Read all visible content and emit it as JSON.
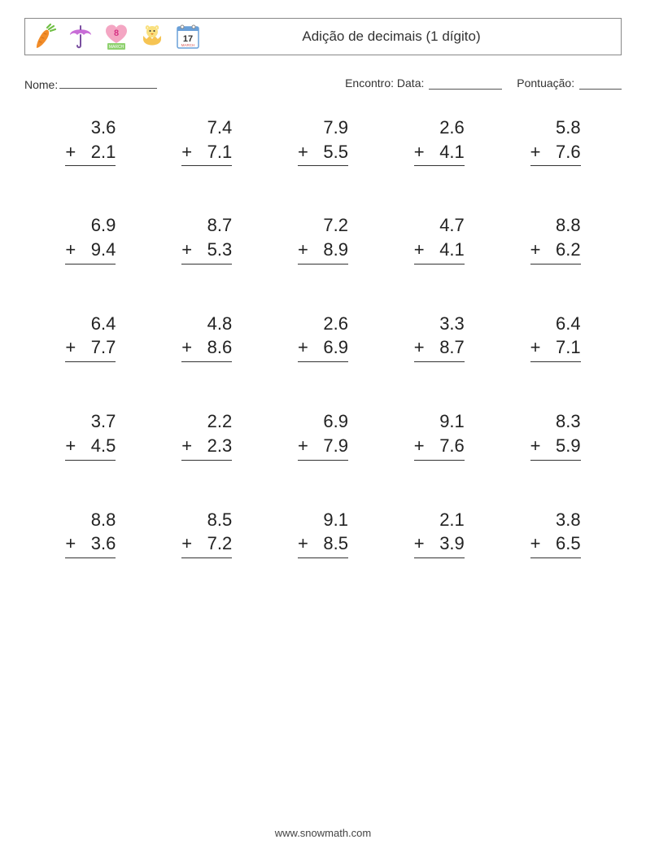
{
  "title": "Adição de decimais (1 dígito)",
  "labels": {
    "name": "Nome:",
    "encounter": "Encontro: Data:",
    "score": "Pontuação:"
  },
  "underline_widths": {
    "name": 120,
    "date": 90,
    "score": 52
  },
  "layout": {
    "rows": 5,
    "cols": 5,
    "problem_fontsize": 22,
    "title_fontsize": 17,
    "label_fontsize": 14,
    "text_color": "#333333",
    "number_color": "#222222",
    "border_color": "#888888",
    "underline_color": "#555555",
    "problem_rule_color": "#333333",
    "background": "#ffffff"
  },
  "icons": [
    {
      "name": "carrot-icon",
      "colors": {
        "body": "#f28c28",
        "leaf": "#6fbf44"
      }
    },
    {
      "name": "umbrella-icon",
      "colors": {
        "canopy": "#c86dd7",
        "handle": "#7a4fa0"
      }
    },
    {
      "name": "heart-calendar-icon",
      "colors": {
        "heart": "#f4a6c3",
        "badge_bg": "#8fd16f",
        "badge_text": "#ffffff",
        "num": "#d63384"
      },
      "text_num": "8",
      "text_label": "MARCH"
    },
    {
      "name": "chick-egg-icon",
      "colors": {
        "egg": "#f6c453",
        "chick": "#f9e07f",
        "beak": "#e67e22"
      }
    },
    {
      "name": "calendar-icon",
      "colors": {
        "frame": "#6aa0d8",
        "page": "#ffffff",
        "ring": "#888888",
        "num": "#333333",
        "label": "#d9534f"
      },
      "text_num": "17",
      "text_label": "MARCH"
    }
  ],
  "operation": "+",
  "problems": [
    [
      {
        "a": "3.6",
        "b": "2.1"
      },
      {
        "a": "7.4",
        "b": "7.1"
      },
      {
        "a": "7.9",
        "b": "5.5"
      },
      {
        "a": "2.6",
        "b": "4.1"
      },
      {
        "a": "5.8",
        "b": "7.6"
      }
    ],
    [
      {
        "a": "6.9",
        "b": "9.4"
      },
      {
        "a": "8.7",
        "b": "5.3"
      },
      {
        "a": "7.2",
        "b": "8.9"
      },
      {
        "a": "4.7",
        "b": "4.1"
      },
      {
        "a": "8.8",
        "b": "6.2"
      }
    ],
    [
      {
        "a": "6.4",
        "b": "7.7"
      },
      {
        "a": "4.8",
        "b": "8.6"
      },
      {
        "a": "2.6",
        "b": "6.9"
      },
      {
        "a": "3.3",
        "b": "8.7"
      },
      {
        "a": "6.4",
        "b": "7.1"
      }
    ],
    [
      {
        "a": "3.7",
        "b": "4.5"
      },
      {
        "a": "2.2",
        "b": "2.3"
      },
      {
        "a": "6.9",
        "b": "7.9"
      },
      {
        "a": "9.1",
        "b": "7.6"
      },
      {
        "a": "8.3",
        "b": "5.9"
      }
    ],
    [
      {
        "a": "8.8",
        "b": "3.6"
      },
      {
        "a": "8.5",
        "b": "7.2"
      },
      {
        "a": "9.1",
        "b": "8.5"
      },
      {
        "a": "2.1",
        "b": "3.9"
      },
      {
        "a": "3.8",
        "b": "6.5"
      }
    ]
  ],
  "footer": "www.snowmath.com"
}
